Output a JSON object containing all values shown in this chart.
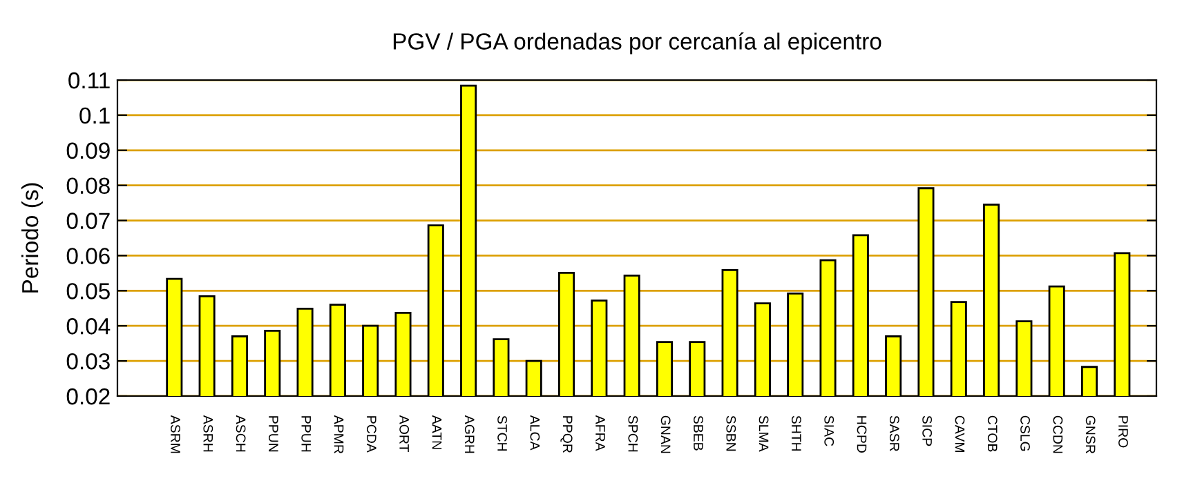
{
  "chart_data": {
    "type": "bar",
    "title": "PGV / PGA ordenadas por cercanía al epicentro",
    "ylabel": "Periodo (s)",
    "categories": [
      "ASRM",
      "ASRH",
      "ASCH",
      "PPUN",
      "PPUH",
      "APMR",
      "PCDA",
      "AORT",
      "AATN",
      "AGRH",
      "STCH",
      "ALCA",
      "PPQR",
      "AFRA",
      "SPCH",
      "GNAN",
      "SBEB",
      "SSBN",
      "SLMA",
      "SHTH",
      "SIAC",
      "HCPD",
      "SASR",
      "SICP",
      "CAVM",
      "CTOB",
      "CSLG",
      "CCDN",
      "GNSR",
      "PIRO"
    ],
    "values": [
      0.0534,
      0.0484,
      0.037,
      0.0386,
      0.0449,
      0.046,
      0.04,
      0.0437,
      0.0686,
      0.1084,
      0.0362,
      0.03,
      0.0551,
      0.0472,
      0.0543,
      0.0354,
      0.0354,
      0.0559,
      0.0464,
      0.0492,
      0.0587,
      0.0658,
      0.037,
      0.0792,
      0.0468,
      0.0745,
      0.0413,
      0.0512,
      0.0283,
      0.0607
    ],
    "color": "#ffff00",
    "ylim": [
      0.02,
      0.11
    ],
    "yticks": [
      0.02,
      0.03,
      0.04,
      0.05,
      0.06,
      0.07,
      0.08,
      0.09,
      0.1,
      0.11
    ],
    "grid": "y"
  }
}
